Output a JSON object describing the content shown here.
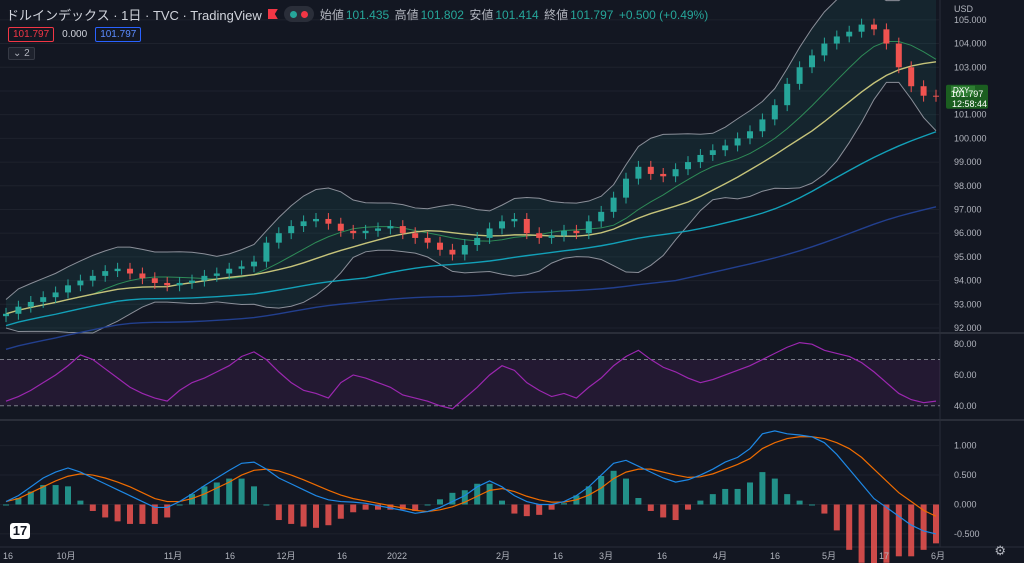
{
  "header": {
    "title": "ドルインデックス · 1日 · TVC · TradingView",
    "ohlc": [
      {
        "label": "始値",
        "value": "101.435"
      },
      {
        "label": "高値",
        "value": "101.802"
      },
      {
        "label": "安値",
        "value": "101.414"
      },
      {
        "label": "終値",
        "value": "101.797"
      },
      {
        "label": "",
        "value": "+0.500 (+0.49%)"
      }
    ]
  },
  "price_boxes": {
    "sell": "101.797",
    "spread": "0.000",
    "buy": "101.797"
  },
  "collapse_label": "2",
  "currency": "USD",
  "price_tag": {
    "symbol": "DXY",
    "price": "101.797",
    "countdown": "12:58:44"
  },
  "colors": {
    "up": "#26a69a",
    "down": "#ef5350",
    "sma_short": "#c5c37a",
    "sma_mid": "#12a0b8",
    "sma_long": "#223f8e",
    "bb_band": "#8b8f99",
    "bb_basis": "#2e8b57",
    "rsi": "#9c27b0",
    "macd": "#1e88e5",
    "signal": "#ef6c00",
    "hist_pos": "#26a69a",
    "hist_neg": "#ef5350"
  },
  "chart_data": [
    {
      "type": "candlestick",
      "title": "",
      "y_axis_ticks": [
        "105.000",
        "104.000",
        "103.000",
        "102.000",
        "101.000",
        "100.000",
        "99.000",
        "98.000",
        "97.000",
        "96.000",
        "95.000",
        "94.000",
        "93.000",
        "92.000"
      ],
      "ylim": [
        92,
        105.5
      ],
      "x_axis_ticks": [
        "16",
        "10月",
        "11月",
        "16",
        "12月",
        "16",
        "2022",
        "2月",
        "16",
        "3月",
        "16",
        "4月",
        "16",
        "5月",
        "17",
        "6月"
      ],
      "close_series": [
        92.6,
        92.9,
        93.1,
        93.3,
        93.5,
        93.8,
        94.0,
        94.2,
        94.4,
        94.5,
        94.3,
        94.1,
        93.9,
        93.8,
        93.9,
        94.0,
        94.2,
        94.3,
        94.5,
        94.6,
        94.8,
        95.6,
        96.0,
        96.3,
        96.5,
        96.6,
        96.4,
        96.1,
        96.0,
        96.1,
        96.2,
        96.3,
        96.0,
        95.8,
        95.6,
        95.3,
        95.1,
        95.5,
        95.8,
        96.2,
        96.5,
        96.6,
        96.0,
        95.8,
        95.9,
        96.1,
        96.0,
        96.5,
        96.9,
        97.5,
        98.3,
        98.8,
        98.5,
        98.4,
        98.7,
        99.0,
        99.3,
        99.5,
        99.7,
        100.0,
        100.3,
        100.8,
        101.4,
        102.3,
        103.0,
        103.5,
        104.0,
        104.3,
        104.5,
        104.8,
        104.6,
        104.0,
        103.0,
        102.2,
        101.8,
        101.797
      ],
      "bollinger": {
        "period": 20,
        "stdev": 2
      },
      "sma_periods": [
        50,
        100,
        200
      ]
    },
    {
      "type": "line",
      "title": "",
      "y_axis_ticks": [
        "80.00",
        "60.00",
        "40.00"
      ],
      "ylim": [
        34,
        84
      ],
      "bands": [
        70,
        40
      ],
      "values": [
        43,
        46,
        50,
        55,
        60,
        66,
        73,
        70,
        64,
        58,
        52,
        48,
        45,
        43,
        50,
        55,
        58,
        62,
        66,
        72,
        75,
        70,
        62,
        55,
        50,
        48,
        45,
        55,
        60,
        58,
        55,
        52,
        47,
        45,
        43,
        40,
        38,
        45,
        52,
        60,
        66,
        63,
        55,
        50,
        46,
        48,
        45,
        52,
        58,
        66,
        72,
        76,
        70,
        65,
        62,
        58,
        55,
        57,
        60,
        63,
        66,
        70,
        74,
        78,
        81,
        80,
        76,
        74,
        72,
        68,
        62,
        55,
        48,
        44,
        42,
        43
      ]
    },
    {
      "type": "macd",
      "title": "",
      "y_axis_ticks": [
        "1.000",
        "0.500",
        "0.000",
        "-0.500"
      ],
      "ylim": [
        -0.62,
        1.35
      ],
      "macd": [
        0.05,
        0.15,
        0.3,
        0.45,
        0.55,
        0.62,
        0.55,
        0.45,
        0.35,
        0.25,
        0.15,
        0.05,
        -0.05,
        -0.05,
        0.05,
        0.18,
        0.32,
        0.45,
        0.58,
        0.7,
        0.72,
        0.6,
        0.45,
        0.35,
        0.25,
        0.15,
        0.08,
        0.05,
        0.04,
        0.02,
        -0.02,
        -0.06,
        -0.1,
        -0.15,
        -0.12,
        -0.05,
        0.05,
        0.15,
        0.3,
        0.4,
        0.3,
        0.15,
        0.05,
        0.0,
        0.0,
        0.05,
        0.15,
        0.3,
        0.5,
        0.7,
        0.75,
        0.65,
        0.55,
        0.45,
        0.38,
        0.42,
        0.5,
        0.6,
        0.72,
        0.8,
        0.95,
        1.2,
        1.25,
        1.2,
        1.18,
        1.15,
        1.05,
        0.85,
        0.6,
        0.35,
        0.1,
        -0.05,
        -0.2,
        -0.35,
        -0.45,
        -0.5
      ],
      "signal": [
        0.05,
        0.1,
        0.2,
        0.3,
        0.4,
        0.48,
        0.52,
        0.5,
        0.45,
        0.38,
        0.3,
        0.2,
        0.1,
        0.05,
        0.05,
        0.1,
        0.18,
        0.28,
        0.38,
        0.5,
        0.58,
        0.6,
        0.57,
        0.5,
        0.42,
        0.33,
        0.24,
        0.16,
        0.1,
        0.06,
        0.02,
        -0.02,
        -0.06,
        -0.1,
        -0.12,
        -0.09,
        -0.04,
        0.04,
        0.14,
        0.24,
        0.27,
        0.22,
        0.14,
        0.08,
        0.04,
        0.04,
        0.08,
        0.16,
        0.28,
        0.44,
        0.55,
        0.6,
        0.6,
        0.55,
        0.5,
        0.46,
        0.47,
        0.52,
        0.6,
        0.68,
        0.78,
        0.95,
        1.05,
        1.12,
        1.15,
        1.15,
        1.12,
        1.05,
        0.95,
        0.8,
        0.6,
        0.4,
        0.2,
        0.05,
        -0.1,
        -0.2
      ]
    }
  ]
}
